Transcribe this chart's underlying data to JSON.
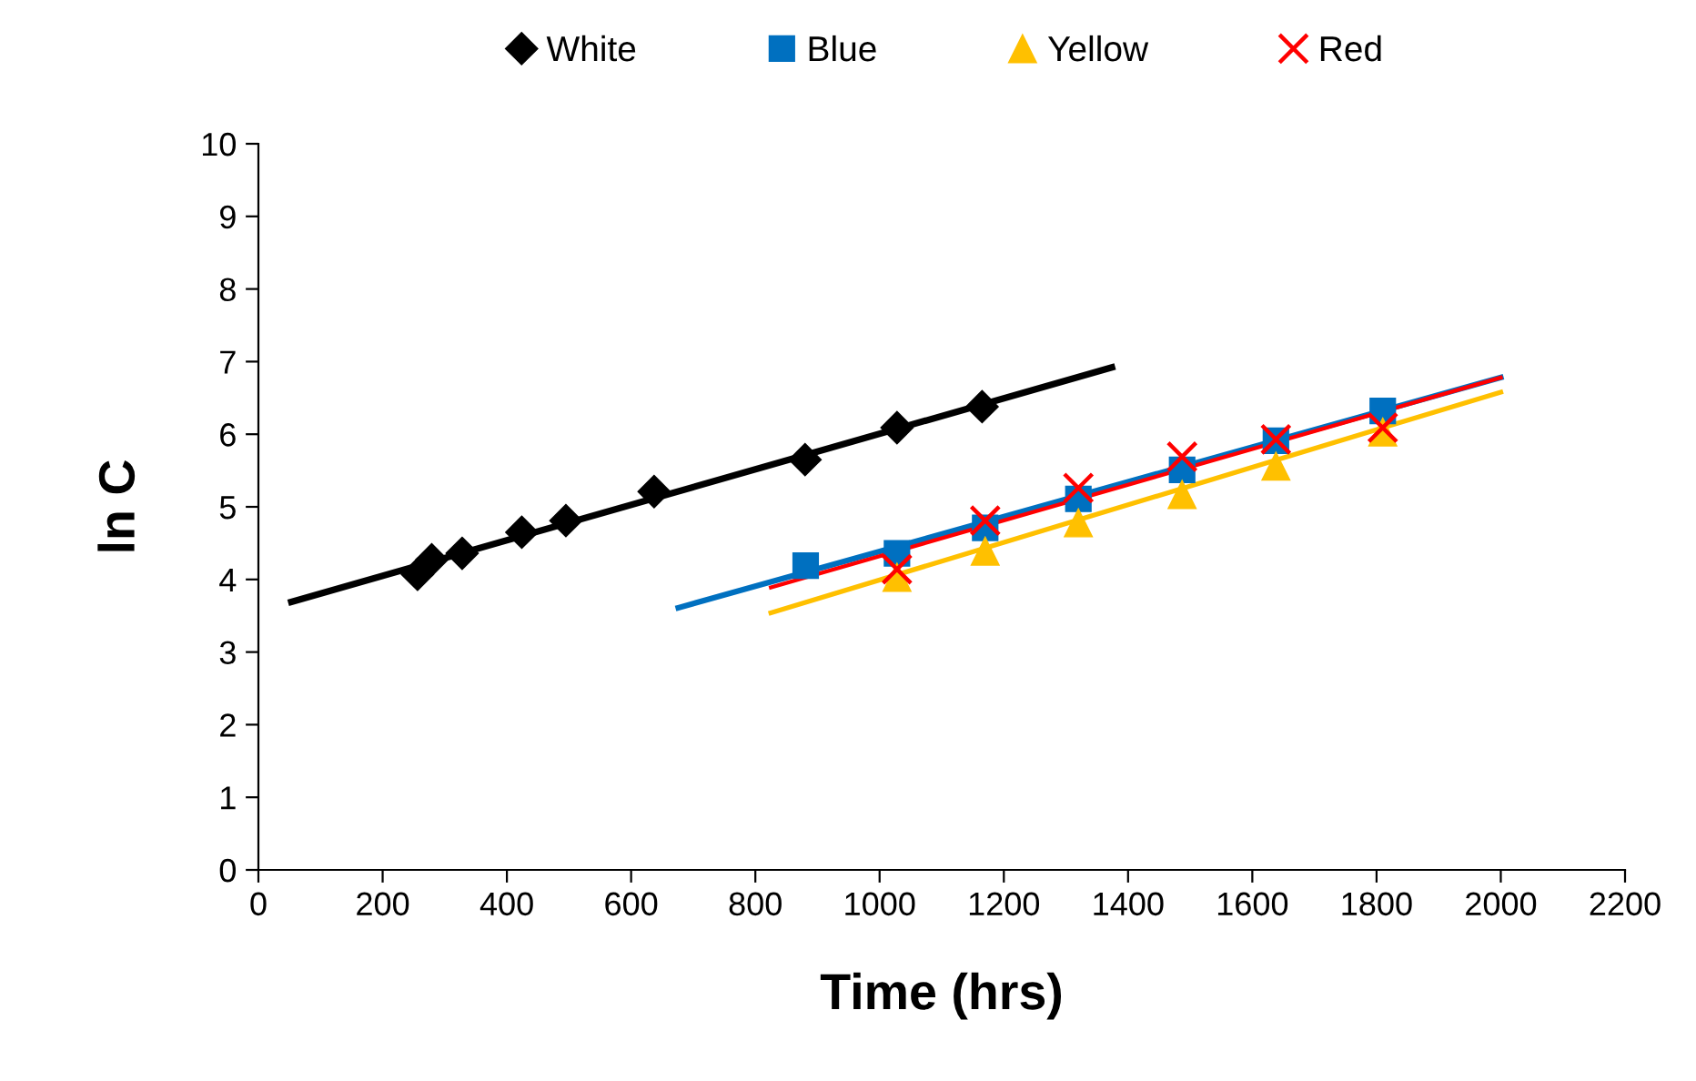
{
  "chart_data": {
    "type": "scatter",
    "xlabel": "Time (hrs)",
    "ylabel": "ln C",
    "xlim": [
      0,
      2200
    ],
    "ylim": [
      0,
      10
    ],
    "xticks": [
      0,
      200,
      400,
      600,
      800,
      1000,
      1200,
      1400,
      1600,
      1800,
      2000,
      2200
    ],
    "yticks": [
      0,
      1,
      2,
      3,
      4,
      5,
      6,
      7,
      8,
      9,
      10
    ],
    "grid": false,
    "legend": "top",
    "series": [
      {
        "name": "White",
        "color": "#000000",
        "marker": "diamond",
        "x": [
          256,
          279,
          328,
          424,
          495,
          637,
          880,
          1028,
          1165
        ],
        "values": [
          4.07,
          4.27,
          4.36,
          4.65,
          4.81,
          5.21,
          5.65,
          6.09,
          6.38
        ]
      },
      {
        "name": "Blue",
        "color": "#0070c0",
        "marker": "square",
        "x": [
          881,
          1028,
          1170,
          1320,
          1487,
          1638,
          1810
        ],
        "values": [
          4.19,
          4.36,
          4.71,
          5.11,
          5.51,
          5.91,
          6.32
        ]
      },
      {
        "name": "Yellow",
        "color": "#ffc000",
        "marker": "triangle",
        "x": [
          1028,
          1170,
          1320,
          1487,
          1638,
          1810
        ],
        "values": [
          4.03,
          4.39,
          4.78,
          5.17,
          5.56,
          6.03
        ]
      },
      {
        "name": "Red",
        "color": "#ff0000",
        "marker": "cross",
        "x": [
          1028,
          1170,
          1320,
          1487,
          1638,
          1810
        ],
        "values": [
          4.14,
          4.81,
          5.26,
          5.69,
          5.93,
          6.09
        ]
      },
      {
        "type": "line",
        "color": "#000000",
        "x": [
          53,
          1374
        ],
        "values": [
          3.69,
          6.92
        ]
      },
      {
        "type": "line",
        "color": "#0070c0",
        "x": [
          676,
          2000
        ],
        "values": [
          3.61,
          6.78
        ]
      },
      {
        "type": "line",
        "color": "#ffc000",
        "x": [
          825,
          2000
        ],
        "values": [
          3.54,
          6.58
        ]
      },
      {
        "type": "line",
        "color": "#ff0000",
        "x": [
          825,
          2000
        ],
        "values": [
          3.89,
          6.78
        ]
      }
    ]
  }
}
